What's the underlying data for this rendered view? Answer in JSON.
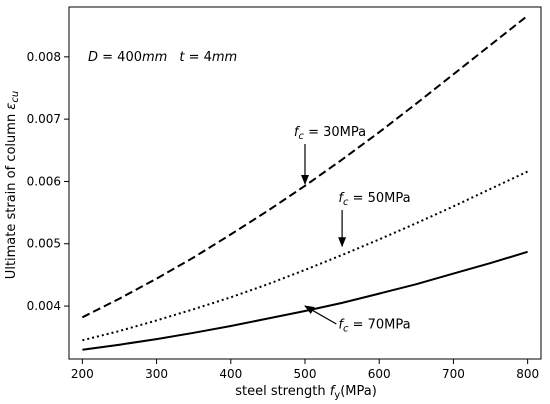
{
  "chart_data": {
    "type": "line",
    "xlabel": "steel strength f_y(MPa)",
    "xlabel_main": "steel strength ",
    "xlabel_sym": "f",
    "xlabel_sub": "y",
    "xlabel_unit": "(MPa)",
    "ylabel": "Ultimate strain of column ε_cu",
    "ylabel_main": "Ultimate strain of column ",
    "ylabel_sym": "ε",
    "ylabel_sub": "cu",
    "xlim": [
      182,
      818
    ],
    "ylim": [
      0.00315,
      0.0088
    ],
    "xticks": [
      200,
      300,
      400,
      500,
      600,
      700,
      800
    ],
    "yticks": [
      0.004,
      0.005,
      0.006,
      0.007,
      0.008
    ],
    "ytick_labels": [
      "0.004",
      "0.005",
      "0.006",
      "0.007",
      "0.008"
    ],
    "grid": false,
    "parameter_text": {
      "d_sym": "D",
      "d_value": " = 400",
      "d_unit": "mm",
      "t_sym": "t",
      "t_value": " = 4",
      "t_unit": "mm"
    },
    "series": [
      {
        "fc_label": "30MPa",
        "style": "dashed",
        "x": [
          200,
          250,
          300,
          350,
          400,
          450,
          500,
          550,
          600,
          650,
          700,
          750,
          800
        ],
        "y": [
          0.00382,
          0.00412,
          0.00444,
          0.00478,
          0.00515,
          0.00553,
          0.00593,
          0.00635,
          0.00679,
          0.00725,
          0.00772,
          0.00819,
          0.00866
        ]
      },
      {
        "fc_label": "50MPa",
        "style": "dotted",
        "x": [
          200,
          250,
          300,
          350,
          400,
          450,
          500,
          550,
          600,
          650,
          700,
          750,
          800
        ],
        "y": [
          0.00345,
          0.0036,
          0.00377,
          0.00395,
          0.00414,
          0.00435,
          0.00458,
          0.00482,
          0.00507,
          0.00533,
          0.0056,
          0.00588,
          0.00616
        ]
      },
      {
        "fc_label": "70MPa",
        "style": "solid",
        "x": [
          200,
          250,
          300,
          350,
          400,
          450,
          500,
          550,
          600,
          650,
          700,
          750,
          800
        ],
        "y": [
          0.0033,
          0.00338,
          0.00347,
          0.00357,
          0.00368,
          0.0038,
          0.00392,
          0.00405,
          0.0042,
          0.00435,
          0.00452,
          0.00469,
          0.00487
        ]
      }
    ],
    "annotations": [
      {
        "series_index": 0,
        "sym": "f",
        "sub": "c",
        "text": " = 30MPa",
        "text_at": [
          485,
          0.00673
        ],
        "arrow_tip": [
          500,
          0.00596
        ]
      },
      {
        "series_index": 1,
        "sym": "f",
        "sub": "c",
        "text": " = 50MPa",
        "text_at": [
          545,
          0.00567
        ],
        "arrow_tip": [
          550,
          0.00496
        ]
      },
      {
        "series_index": 2,
        "sym": "f",
        "sub": "c",
        "text": " = 70MPa",
        "text_at": [
          545,
          0.00364
        ],
        "arrow_tip": [
          500,
          0.004
        ]
      }
    ]
  }
}
